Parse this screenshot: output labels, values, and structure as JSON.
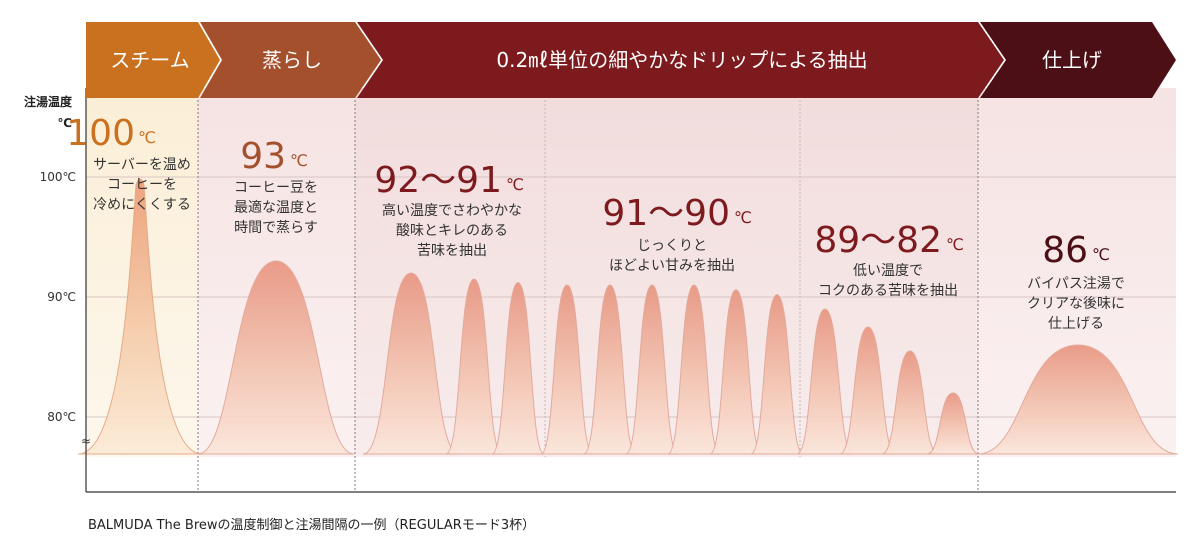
{
  "phases": [
    {
      "label": "スチーム",
      "color": "#c9711f"
    },
    {
      "label": "蒸らし",
      "color": "#a4502d"
    },
    {
      "label": "0.2㎖単位の細やかなドリップによる抽出",
      "color": "#7d1a1e"
    },
    {
      "label": "仕上げ",
      "color": "#4c0f15"
    }
  ],
  "axis": {
    "title_line1": "注湯温度",
    "title_line2": "℃",
    "ticks": [
      "100℃",
      "90℃",
      "80℃"
    ],
    "break_symbol": "≈"
  },
  "annotations": [
    {
      "temp": "100",
      "unit": "℃",
      "color": "#c9711f",
      "lines": [
        "サーバーを温め",
        "コーヒーを",
        "冷めにくくする"
      ]
    },
    {
      "temp": "93",
      "unit": "℃",
      "color": "#a4502d",
      "lines": [
        "コーヒー豆を",
        "最適な温度と",
        "時間で蒸らす"
      ]
    },
    {
      "temp": "92～91",
      "unit": "℃",
      "color": "#7d1a1e",
      "lines": [
        "高い温度でさわやかな",
        "酸味とキレのある",
        "苦味を抽出"
      ]
    },
    {
      "temp": "91～90",
      "unit": "℃",
      "color": "#7d1a1e",
      "lines": [
        "じっくりと",
        "ほどよい甘みを抽出"
      ]
    },
    {
      "temp": "89～82",
      "unit": "℃",
      "color": "#7d1a1e",
      "lines": [
        "低い温度で",
        "コクのある苦味を抽出"
      ]
    },
    {
      "temp": "86",
      "unit": "℃",
      "color": "#4c0f15",
      "lines": [
        "バイパス注湯で",
        "クリアな後味に",
        "仕上げる"
      ]
    }
  ],
  "caption": "BALMUDA The Brewの温度制御と注湯間隔の一例（REGULARモード3杯）",
  "chart_data": {
    "type": "area",
    "ylabel": "注湯温度 ℃",
    "yticks": [
      100,
      90,
      80
    ],
    "phases": [
      "スチーム",
      "蒸らし",
      "0.2㎖単位の細やかなドリップによる抽出",
      "仕上げ"
    ],
    "series": [
      {
        "phase": "スチーム",
        "pulse_peaks_c": [
          100
        ]
      },
      {
        "phase": "蒸らし",
        "pulse_peaks_c": [
          93
        ]
      },
      {
        "phase": "0.2㎖単位の細やかなドリップによる抽出",
        "stage": "92～91℃",
        "pulse_peaks_c": [
          92,
          91.5,
          91.2
        ]
      },
      {
        "phase": "0.2㎖単位の細やかなドリップによる抽出",
        "stage": "91～90℃",
        "pulse_peaks_c": [
          91,
          91,
          91,
          91,
          90.6,
          90.2
        ]
      },
      {
        "phase": "0.2㎖単位の細やかなドリップによる抽出",
        "stage": "89～82℃",
        "pulse_peaks_c": [
          89,
          87.5,
          85.5,
          82
        ]
      },
      {
        "phase": "仕上げ",
        "pulse_peaks_c": [
          86
        ]
      }
    ]
  }
}
